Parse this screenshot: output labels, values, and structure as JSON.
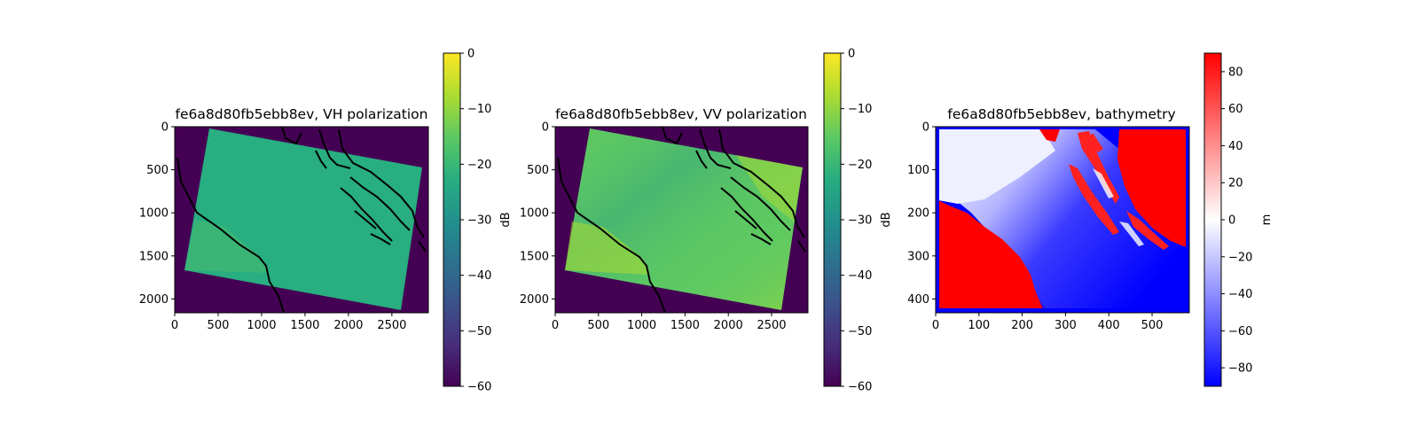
{
  "chart_data": [
    {
      "type": "heatmap",
      "title": "fe6a8d80fb5ebb8ev, VH polarization",
      "xlim": [
        0,
        2920
      ],
      "ylim": [
        2160,
        0
      ],
      "x_ticks": [
        0,
        500,
        1000,
        1500,
        2000,
        2500
      ],
      "y_ticks": [
        0,
        500,
        1000,
        1500,
        2000
      ],
      "colormap": "viridis",
      "colorbar": {
        "label": "dB",
        "range": [
          -60,
          0
        ],
        "ticks": [
          0,
          -10,
          -20,
          -30,
          -40,
          -50,
          -60
        ]
      },
      "footprint_dB": -22,
      "coastline_color": "#000000"
    },
    {
      "type": "heatmap",
      "title": "fe6a8d80fb5ebb8ev, VV polarization",
      "xlim": [
        0,
        2920
      ],
      "ylim": [
        2160,
        0
      ],
      "x_ticks": [
        0,
        500,
        1000,
        1500,
        2000,
        2500
      ],
      "y_ticks": [
        0,
        500,
        1000,
        1500,
        2000
      ],
      "colormap": "viridis",
      "colorbar": {
        "label": "dB",
        "range": [
          -60,
          0
        ],
        "ticks": [
          0,
          -10,
          -20,
          -30,
          -40,
          -50,
          -60
        ]
      },
      "footprint_dB": -16,
      "coastline_color": "#000000"
    },
    {
      "type": "heatmap",
      "title": "fe6a8d80fb5ebb8ev, bathymetry",
      "xlim": [
        0,
        586
      ],
      "ylim": [
        432,
        0
      ],
      "x_ticks": [
        0,
        100,
        200,
        300,
        400,
        500
      ],
      "y_ticks": [
        0,
        100,
        200,
        300,
        400
      ],
      "colormap": "bwr",
      "colorbar": {
        "label": "m",
        "range": [
          -90,
          90
        ],
        "ticks": [
          80,
          60,
          40,
          20,
          0,
          -20,
          -40,
          -60,
          -80
        ]
      }
    }
  ]
}
